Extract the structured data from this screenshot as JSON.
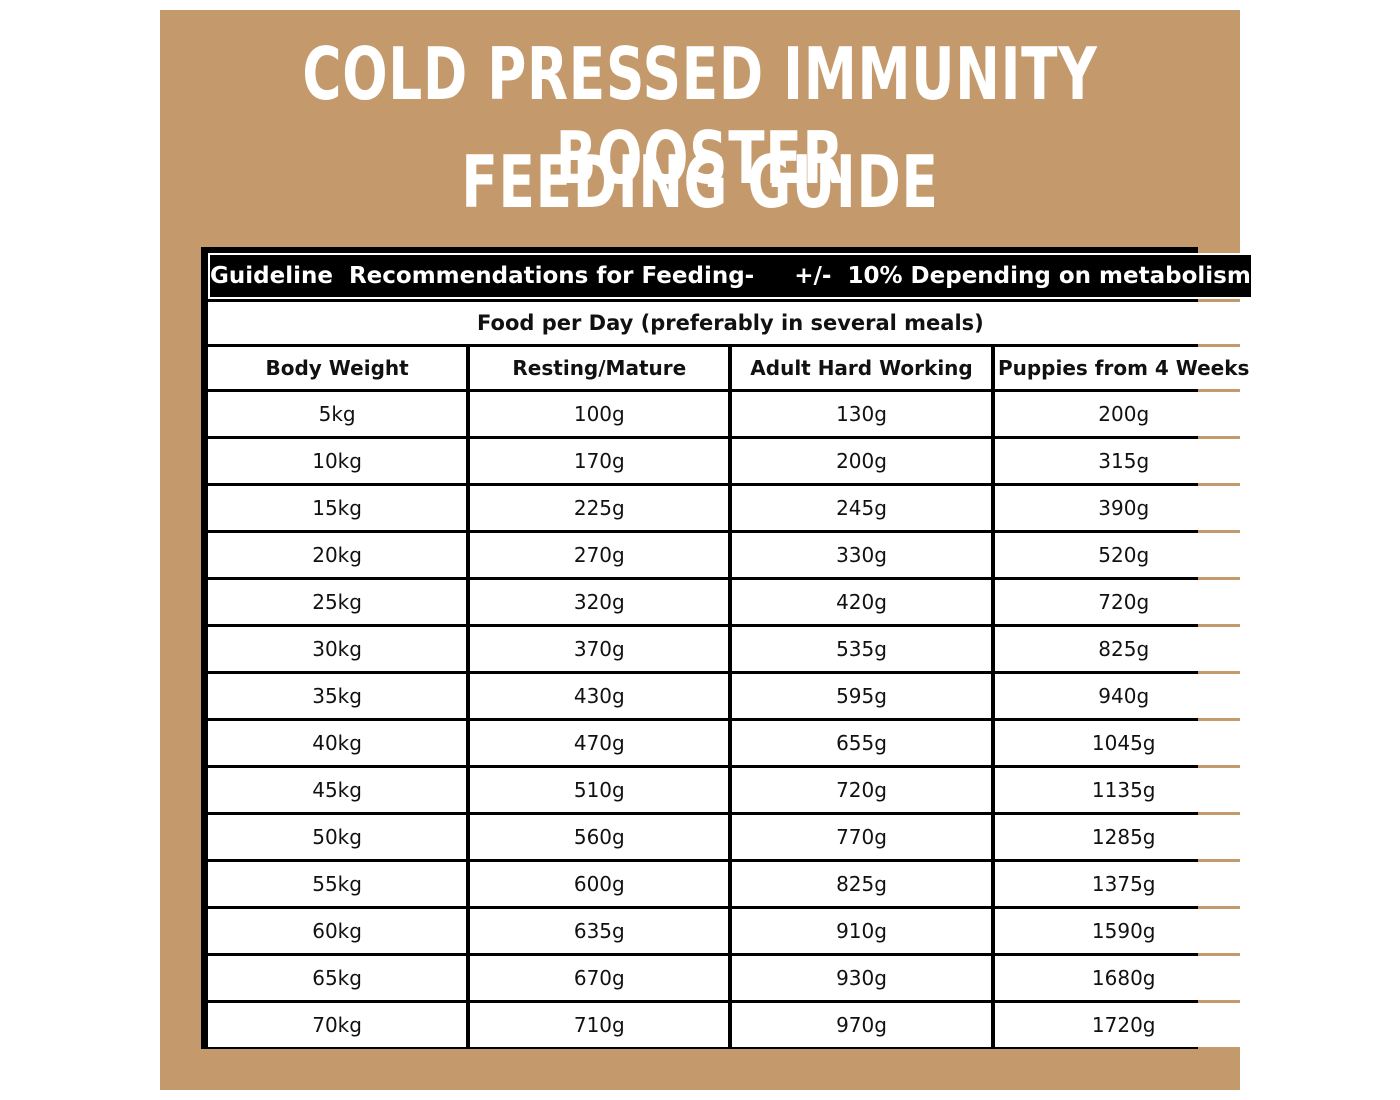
{
  "title_line1": "COLD PRESSED IMMUNITY BOOSTER",
  "title_line2": "FEEDING GUIDE",
  "table": {
    "banner": "Guideline  Recommendations for Feeding-     +/-  10% Depending on metabolism",
    "subheader": "Food per Day (preferably in several meals)",
    "columns": [
      "Body Weight",
      "Resting/Mature",
      "Adult Hard Working",
      "Puppies from 4 Weeks"
    ],
    "rows": [
      [
        "5kg",
        "100g",
        "130g",
        "200g"
      ],
      [
        "10kg",
        "170g",
        "200g",
        "315g"
      ],
      [
        "15kg",
        "225g",
        "245g",
        "390g"
      ],
      [
        "20kg",
        "270g",
        "330g",
        "520g"
      ],
      [
        "25kg",
        "320g",
        "420g",
        "720g"
      ],
      [
        "30kg",
        "370g",
        "535g",
        "825g"
      ],
      [
        "35kg",
        "430g",
        "595g",
        "940g"
      ],
      [
        "40kg",
        "470g",
        "655g",
        "1045g"
      ],
      [
        "45kg",
        "510g",
        "720g",
        "1135g"
      ],
      [
        "50kg",
        "560g",
        "770g",
        "1285g"
      ],
      [
        "55kg",
        "600g",
        "825g",
        "1375g"
      ],
      [
        "60kg",
        "635g",
        "910g",
        "1590g"
      ],
      [
        "65kg",
        "670g",
        "930g",
        "1680g"
      ],
      [
        "70kg",
        "710g",
        "970g",
        "1720g"
      ]
    ]
  },
  "colors": {
    "background": "#c49a6c",
    "title_text": "#ffffff",
    "banner_bg": "#000000",
    "cell_bg": "#ffffff"
  }
}
